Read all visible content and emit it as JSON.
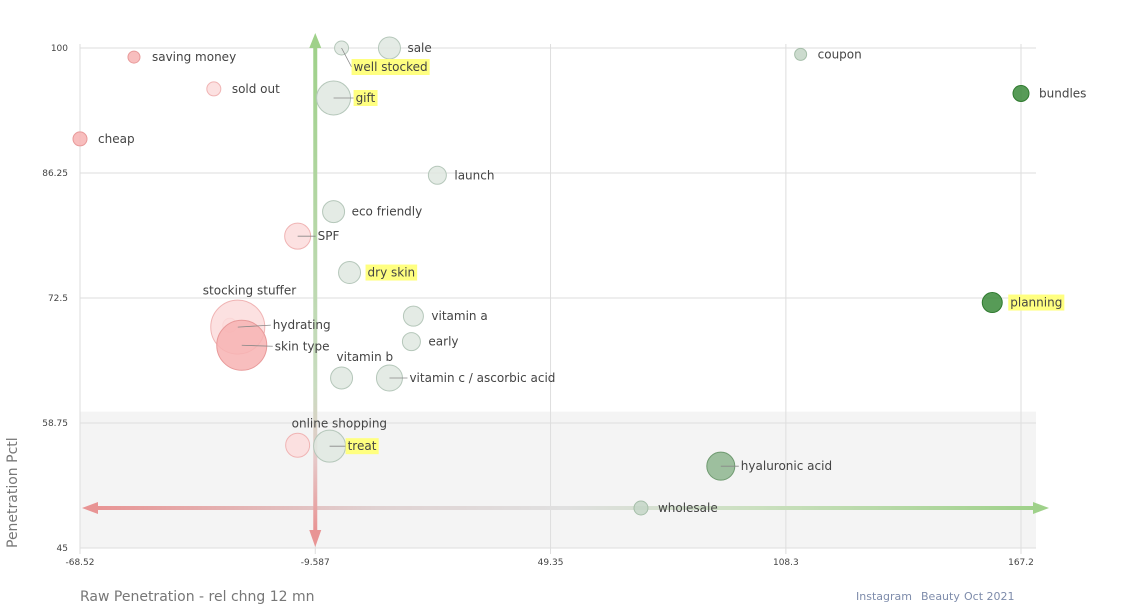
{
  "chart_data": {
    "type": "scatter",
    "xlabel": "Raw Penetration - rel chng 12 mn",
    "ylabel": "Penetration Pctl",
    "x_ticks": [
      "-68.52",
      "-9.587",
      "49.35",
      "108.3",
      "167.2"
    ],
    "y_ticks": [
      "100",
      "86.25",
      "72.5",
      "58.75",
      "45"
    ],
    "xlim": [
      -68.52,
      167.2
    ],
    "ylim": [
      45,
      100
    ],
    "grid": true,
    "shaded_band_y": [
      45,
      60
    ],
    "colors": {
      "red_fill": "#f7b3b3",
      "red_stroke": "#e89a9a",
      "light_red_fill": "#fbdcdc",
      "light_red_stroke": "#f0b4b4",
      "grey_fill": "#dfe8e1",
      "grey_stroke": "#b5c7ba",
      "mid_green_fill": "#c3d5c5",
      "mid_green_stroke": "#a5bea9",
      "dark_green_fill": "#3a8a3a",
      "dark_green_stroke": "#2f7a2f",
      "olive_fill": "#8db58e",
      "olive_stroke": "#6f9a70",
      "highlight": "#ffff80",
      "axis_green": "#9fd18a",
      "axis_red": "#e89494"
    },
    "points": [
      {
        "label": "saving money",
        "x": -55,
        "y": 99,
        "size": 6,
        "color": "red",
        "highlight": false
      },
      {
        "label": "sold out",
        "x": -35,
        "y": 95.5,
        "size": 7,
        "color": "light_red",
        "highlight": false
      },
      {
        "label": "cheap",
        "x": -68.52,
        "y": 90,
        "size": 7,
        "color": "red",
        "highlight": false
      },
      {
        "label": "well stocked",
        "x": -3,
        "y": 100,
        "size": 7,
        "color": "grey",
        "highlight": true
      },
      {
        "label": "sale",
        "x": 9,
        "y": 100,
        "size": 11,
        "color": "grey",
        "highlight": false
      },
      {
        "label": "gift",
        "x": -5,
        "y": 94.5,
        "size": 17,
        "color": "grey",
        "highlight": true
      },
      {
        "label": "coupon",
        "x": 112,
        "y": 99.3,
        "size": 6,
        "color": "mid_green",
        "highlight": false
      },
      {
        "label": "bundles",
        "x": 167.2,
        "y": 95,
        "size": 8,
        "color": "dark_green",
        "highlight": false
      },
      {
        "label": "launch",
        "x": 21,
        "y": 86,
        "size": 9,
        "color": "grey",
        "highlight": false
      },
      {
        "label": "eco friendly",
        "x": -5,
        "y": 82,
        "size": 11,
        "color": "grey",
        "highlight": false
      },
      {
        "label": "SPF",
        "x": -14,
        "y": 79.3,
        "size": 13,
        "color": "light_red",
        "highlight": false
      },
      {
        "label": "dry skin",
        "x": -1,
        "y": 75.3,
        "size": 11,
        "color": "grey",
        "highlight": true
      },
      {
        "label": "planning",
        "x": 160,
        "y": 72,
        "size": 10,
        "color": "dark_green",
        "highlight": true
      },
      {
        "label": "vitamin a",
        "x": 15,
        "y": 70.5,
        "size": 10,
        "color": "grey",
        "highlight": false
      },
      {
        "label": "stocking stuffer",
        "x": -31,
        "y": 69.5,
        "size": 7,
        "color": "light_red",
        "highlight": false
      },
      {
        "label": "hydrating",
        "x": -29,
        "y": 69.3,
        "size": 27,
        "color": "light_red",
        "highlight": false
      },
      {
        "label": "skin type",
        "x": -28,
        "y": 67.3,
        "size": 25,
        "color": "red",
        "highlight": false
      },
      {
        "label": "early",
        "x": 14.5,
        "y": 67.7,
        "size": 9,
        "color": "grey",
        "highlight": false
      },
      {
        "label": "vitamin b",
        "x": -3,
        "y": 63.7,
        "size": 11,
        "color": "grey",
        "highlight": false
      },
      {
        "label": "vitamin c / ascorbic acid",
        "x": 9,
        "y": 63.7,
        "size": 13,
        "color": "grey",
        "highlight": false
      },
      {
        "label": "online shopping",
        "x": -14,
        "y": 56.3,
        "size": 12,
        "color": "light_red",
        "highlight": false
      },
      {
        "label": "treat",
        "x": -6,
        "y": 56.2,
        "size": 16,
        "color": "grey",
        "highlight": true
      },
      {
        "label": "hyaluronic acid",
        "x": 92,
        "y": 54,
        "size": 14,
        "color": "olive",
        "highlight": false
      },
      {
        "label": "wholesale",
        "x": 72,
        "y": 49.4,
        "size": 7,
        "color": "mid_green",
        "highlight": false
      }
    ]
  },
  "footer": {
    "source": "Instagram",
    "category": "Beauty",
    "period": "Oct 2021"
  }
}
